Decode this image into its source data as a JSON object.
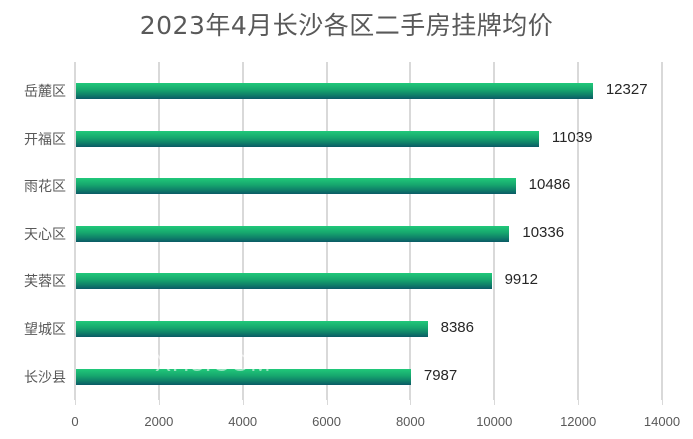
{
  "chart_data": {
    "type": "bar",
    "orientation": "horizontal",
    "title": "2023年4月长沙各区二手房挂牌均价",
    "categories": [
      "岳麓区",
      "开福区",
      "雨花区",
      "天心区",
      "芙蓉区",
      "望城区",
      "长沙县"
    ],
    "values": [
      12327,
      11039,
      10486,
      10336,
      9912,
      8386,
      7987
    ],
    "xlabel": "",
    "ylabel": "",
    "xlim": [
      0,
      14000
    ],
    "xticks": [
      "0",
      "2000",
      "4000",
      "6000",
      "8000",
      "10000",
      "12000",
      "14000"
    ],
    "grid": true,
    "legend": null,
    "data_labels": true,
    "bar_color_gradient": [
      "#21c97a",
      "#0b5a66"
    ]
  },
  "watermark": "XH3.COM"
}
